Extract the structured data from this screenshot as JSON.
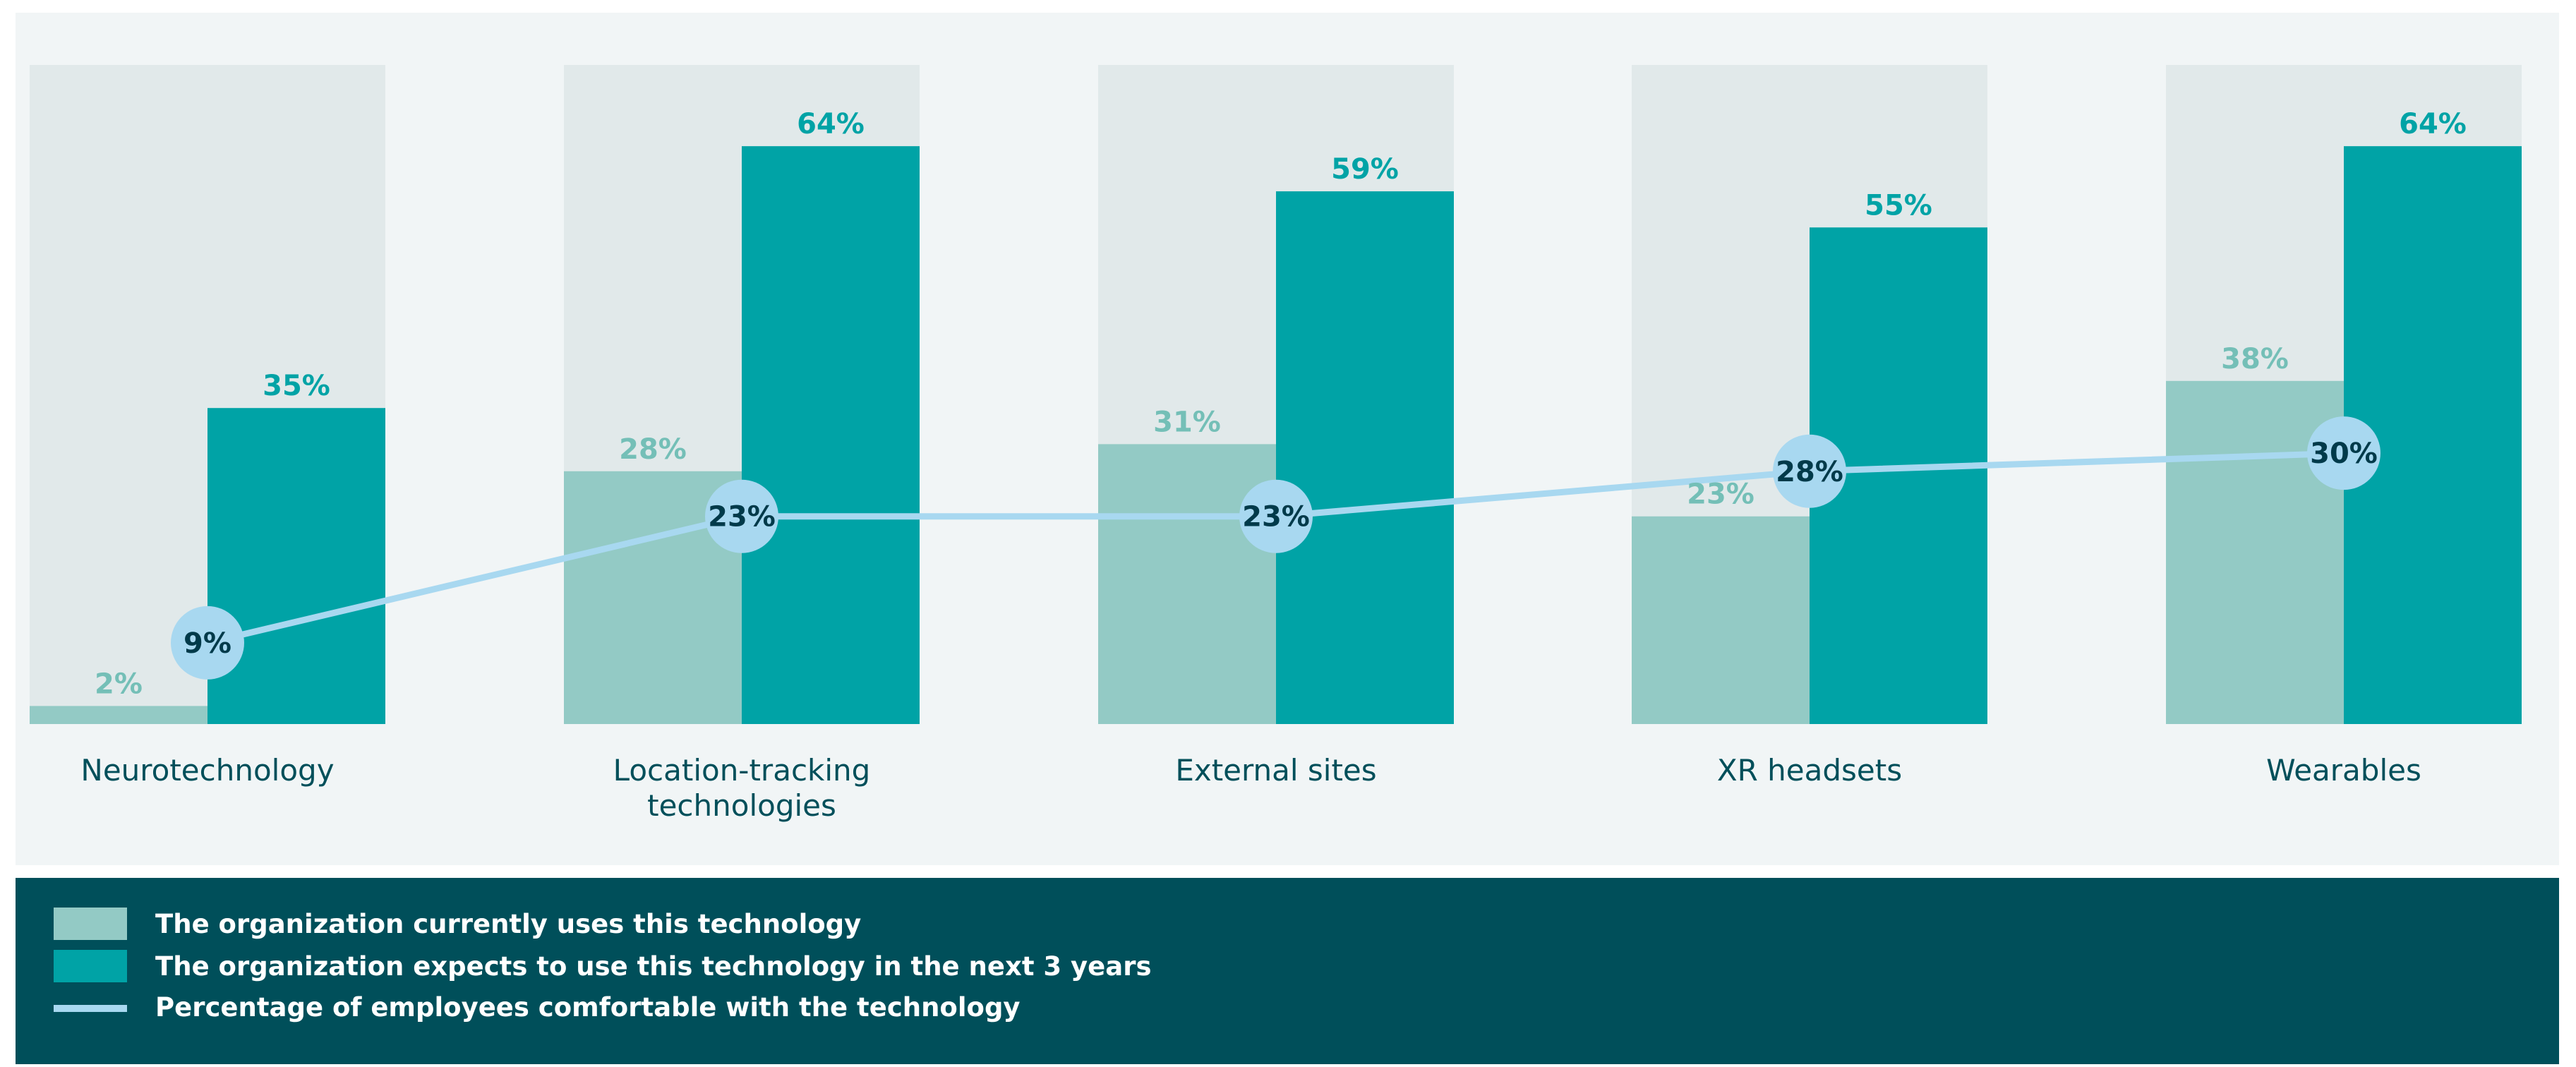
{
  "chart_data": {
    "type": "bar",
    "categories": [
      "Neurotechnology",
      "Location-tracking technologies",
      "External sites",
      "XR headsets",
      "Wearables"
    ],
    "category_lines": [
      [
        "Neurotechnology"
      ],
      [
        "Location-tracking",
        "technologies"
      ],
      [
        "External sites"
      ],
      [
        "XR headsets"
      ],
      [
        "Wearables"
      ]
    ],
    "series": [
      {
        "name": "The organization currently uses this technology",
        "type": "bar",
        "color": "#93cac5",
        "values": [
          2,
          28,
          31,
          23,
          38
        ]
      },
      {
        "name": "The organization expects to use this technology in the next 3 years",
        "type": "bar",
        "color": "#00a3a6",
        "values": [
          35,
          64,
          59,
          55,
          64
        ]
      },
      {
        "name": "Percentage of employees comfortable with the technology",
        "type": "line",
        "color": "#a8d8f0",
        "values": [
          9,
          23,
          23,
          28,
          30
        ]
      }
    ],
    "value_labels": [
      {
        "current": "2%",
        "expected": "35%",
        "comfort": "9%"
      },
      {
        "current": "28%",
        "expected": "64%",
        "comfort": "23%"
      },
      {
        "current": "31%",
        "expected": "59%",
        "comfort": "23%"
      },
      {
        "current": "23%",
        "expected": "55%",
        "comfort": "28%"
      },
      {
        "current": "38%",
        "expected": "64%",
        "comfort": "30%"
      }
    ],
    "ylim": [
      0,
      73
    ],
    "background_track_color": "#e1e9ea",
    "label_colors": {
      "current": "#74bfb7",
      "current_inside": "#000000",
      "expected": "#00a3a6",
      "comfort": "#003a4a",
      "category": "#004f5a"
    },
    "legend_position": "bottom",
    "grid": false
  },
  "legend": [
    {
      "label": "The organization currently uses this technology",
      "marker": "swatch",
      "color": "#93cac5"
    },
    {
      "label": "The organization expects to use this technology in the next 3 years",
      "marker": "swatch",
      "color": "#00a3a6"
    },
    {
      "label": "Percentage of employees comfortable with the technology",
      "marker": "line",
      "color": "#a8d8f0"
    }
  ],
  "colors": {
    "panel_background": "#f1f5f6",
    "legend_background": "#004f5a"
  }
}
